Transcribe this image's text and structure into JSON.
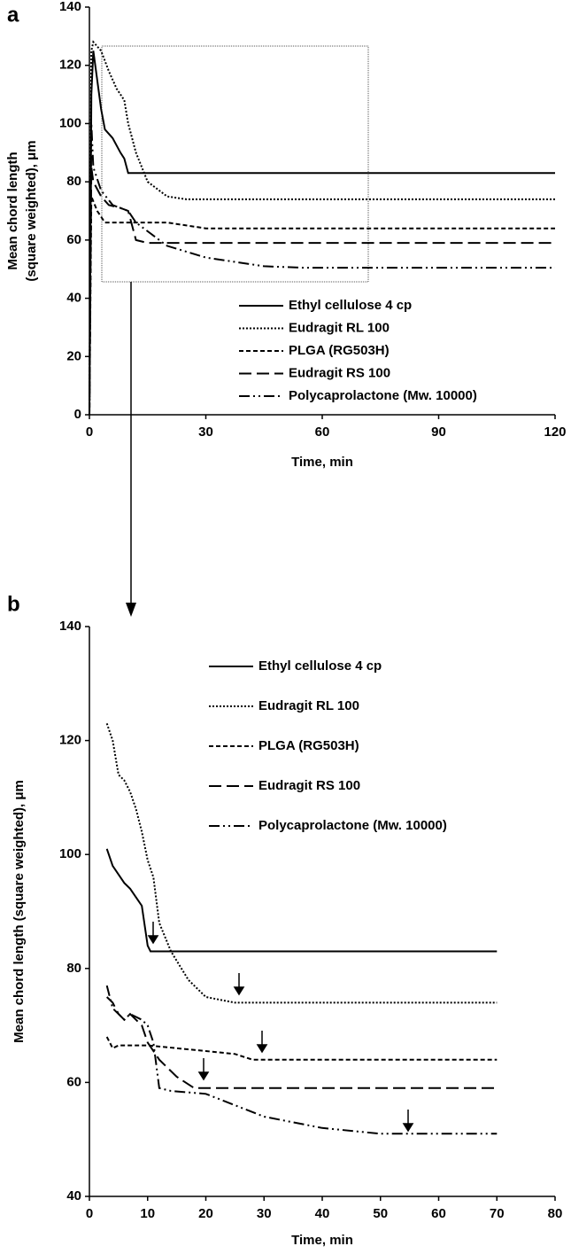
{
  "chart_data": [
    {
      "type": "line",
      "panel_label": "a",
      "xlabel": "Time, min",
      "ylabel": [
        "Mean chord length",
        "(square weighted), μm"
      ],
      "xlim": [
        0,
        120
      ],
      "ylim": [
        0,
        140
      ],
      "xticks": [
        0,
        30,
        60,
        90,
        120
      ],
      "yticks": [
        0,
        20,
        40,
        60,
        80,
        100,
        120,
        140
      ],
      "legend": "lower right",
      "series": [
        {
          "name": "Ethyl cellulose 4 cp",
          "color": "#000000",
          "linestyle": "solid",
          "x": [
            0,
            0.5,
            1,
            2,
            3,
            4,
            6,
            8,
            9,
            10,
            11,
            120
          ],
          "values": [
            0,
            110,
            125,
            115,
            105,
            98,
            95,
            90,
            88,
            83,
            83,
            83
          ]
        },
        {
          "name": "Eudragit RL 100",
          "color": "#000000",
          "linestyle": "dotted",
          "x": [
            0,
            0.5,
            1,
            3,
            5,
            7,
            9,
            10,
            12,
            15,
            20,
            25,
            120
          ],
          "values": [
            0,
            125,
            128,
            125,
            118,
            112,
            108,
            100,
            90,
            80,
            75,
            74,
            74
          ]
        },
        {
          "name": "PLGA (RG503H)",
          "color": "#000000",
          "linestyle": "dashed",
          "x": [
            0,
            0.5,
            2,
            3,
            4,
            10,
            20,
            25,
            30,
            120
          ],
          "values": [
            0,
            75,
            70,
            68,
            66,
            66,
            66,
            65,
            64,
            64
          ]
        },
        {
          "name": "Eudragit RS 100",
          "color": "#000000",
          "linestyle": "long-dashed",
          "x": [
            0,
            0.5,
            1,
            3,
            5,
            8,
            10,
            12,
            15,
            120
          ],
          "values": [
            0,
            85,
            80,
            75,
            72,
            71,
            70,
            60,
            59,
            59
          ]
        },
        {
          "name": "Polycaprolactone (Mw. 10000)",
          "color": "#000000",
          "linestyle": "dash-dot-dot",
          "x": [
            0,
            0.5,
            1,
            3,
            6,
            10,
            12,
            20,
            30,
            45,
            55,
            120
          ],
          "values": [
            0,
            100,
            85,
            77,
            72,
            70,
            66,
            58,
            54,
            51,
            50.5,
            50.5
          ]
        }
      ]
    },
    {
      "type": "line",
      "panel_label": "b",
      "xlabel": "Time, min",
      "ylabel": "Mean chord length (square weighted), μm",
      "xlim": [
        0,
        80
      ],
      "ylim": [
        40,
        140
      ],
      "xticks": [
        0,
        10,
        20,
        30,
        40,
        50,
        60,
        70,
        80
      ],
      "yticks": [
        40,
        60,
        80,
        100,
        120,
        140
      ],
      "legend": "upper left",
      "series": [
        {
          "name": "Ethyl cellulose 4 cp",
          "color": "#000000",
          "linestyle": "solid",
          "x": [
            3,
            4,
            6,
            7,
            9,
            10,
            10.5,
            70
          ],
          "values": [
            101,
            98,
            95,
            94,
            91,
            84,
            83,
            83
          ]
        },
        {
          "name": "Eudragit RL 100",
          "color": "#000000",
          "linestyle": "dotted",
          "x": [
            3,
            4,
            5,
            6,
            7,
            8,
            9,
            10,
            11,
            12,
            14,
            17,
            20,
            25,
            70
          ],
          "values": [
            123,
            120,
            114,
            113,
            111,
            108,
            104,
            99,
            96,
            88,
            83,
            78,
            75,
            74,
            74
          ]
        },
        {
          "name": "PLGA (RG503H)",
          "color": "#000000",
          "linestyle": "dashed",
          "x": [
            3,
            4,
            5,
            10,
            15,
            20,
            25,
            28,
            30,
            70
          ],
          "values": [
            68,
            66,
            66.5,
            66.5,
            66,
            65.5,
            65,
            64,
            64,
            64
          ]
        },
        {
          "name": "Eudragit RS 100",
          "color": "#000000",
          "linestyle": "long-dashed",
          "x": [
            3,
            4,
            5,
            6,
            7,
            8,
            9,
            10,
            12,
            15,
            18,
            20,
            70
          ],
          "values": [
            75,
            74,
            72,
            71,
            72,
            71,
            70,
            67,
            64,
            61,
            59,
            59,
            59
          ]
        },
        {
          "name": "Polycaprolactone (Mw. 10000)",
          "color": "#000000",
          "linestyle": "dash-dot-dot",
          "x": [
            3,
            4,
            5,
            6,
            7,
            9,
            10,
            11,
            12,
            14,
            20,
            30,
            40,
            50,
            55,
            70
          ],
          "values": [
            77,
            73,
            72,
            71,
            72,
            71,
            70,
            67,
            59,
            58.5,
            58,
            54,
            52,
            51,
            51,
            51
          ]
        }
      ]
    }
  ]
}
